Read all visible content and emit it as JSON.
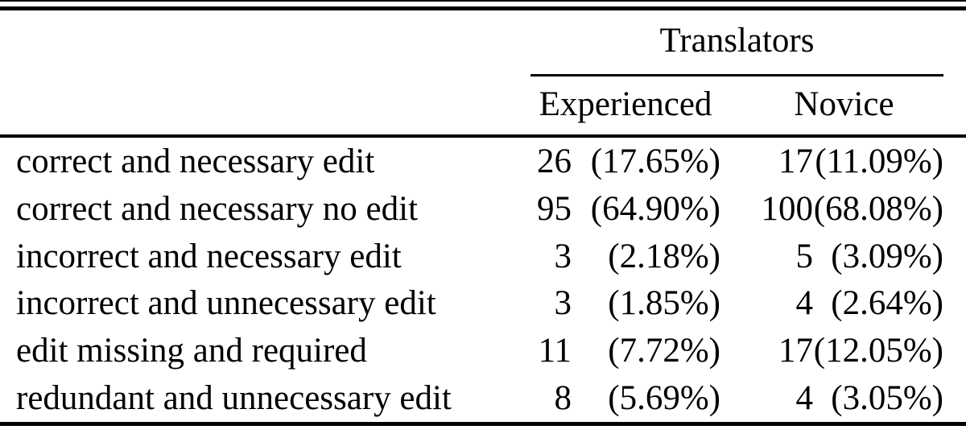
{
  "table": {
    "group_header": "Translators",
    "col_headers": [
      {
        "label": "Experienced"
      },
      {
        "label": "Novice"
      }
    ],
    "rows": [
      {
        "label": "correct and necessary edit",
        "exp_count": "26",
        "exp_pct": "(17.65%)",
        "nov_count": "17",
        "nov_pct": "(11.09%)"
      },
      {
        "label": "correct and necessary no edit",
        "exp_count": "95",
        "exp_pct": "(64.90%)",
        "nov_count": "100",
        "nov_pct": "(68.08%)"
      },
      {
        "label": "incorrect and necessary edit",
        "exp_count": "3",
        "exp_pct": "(2.18%)",
        "nov_count": "5",
        "nov_pct": "(3.09%)"
      },
      {
        "label": "incorrect and unnecessary edit",
        "exp_count": "3",
        "exp_pct": "(1.85%)",
        "nov_count": "4",
        "nov_pct": "(2.64%)"
      },
      {
        "label": "edit missing and required",
        "exp_count": "11",
        "exp_pct": "(7.72%)",
        "nov_count": "17",
        "nov_pct": "(12.05%)"
      },
      {
        "label": "redundant and unnecessary edit",
        "exp_count": "8",
        "exp_pct": "(5.69%)",
        "nov_count": "4",
        "nov_pct": "(3.05%)"
      }
    ],
    "colors": {
      "text": "#000000",
      "background": "#ffffff",
      "rule": "#000000"
    }
  }
}
